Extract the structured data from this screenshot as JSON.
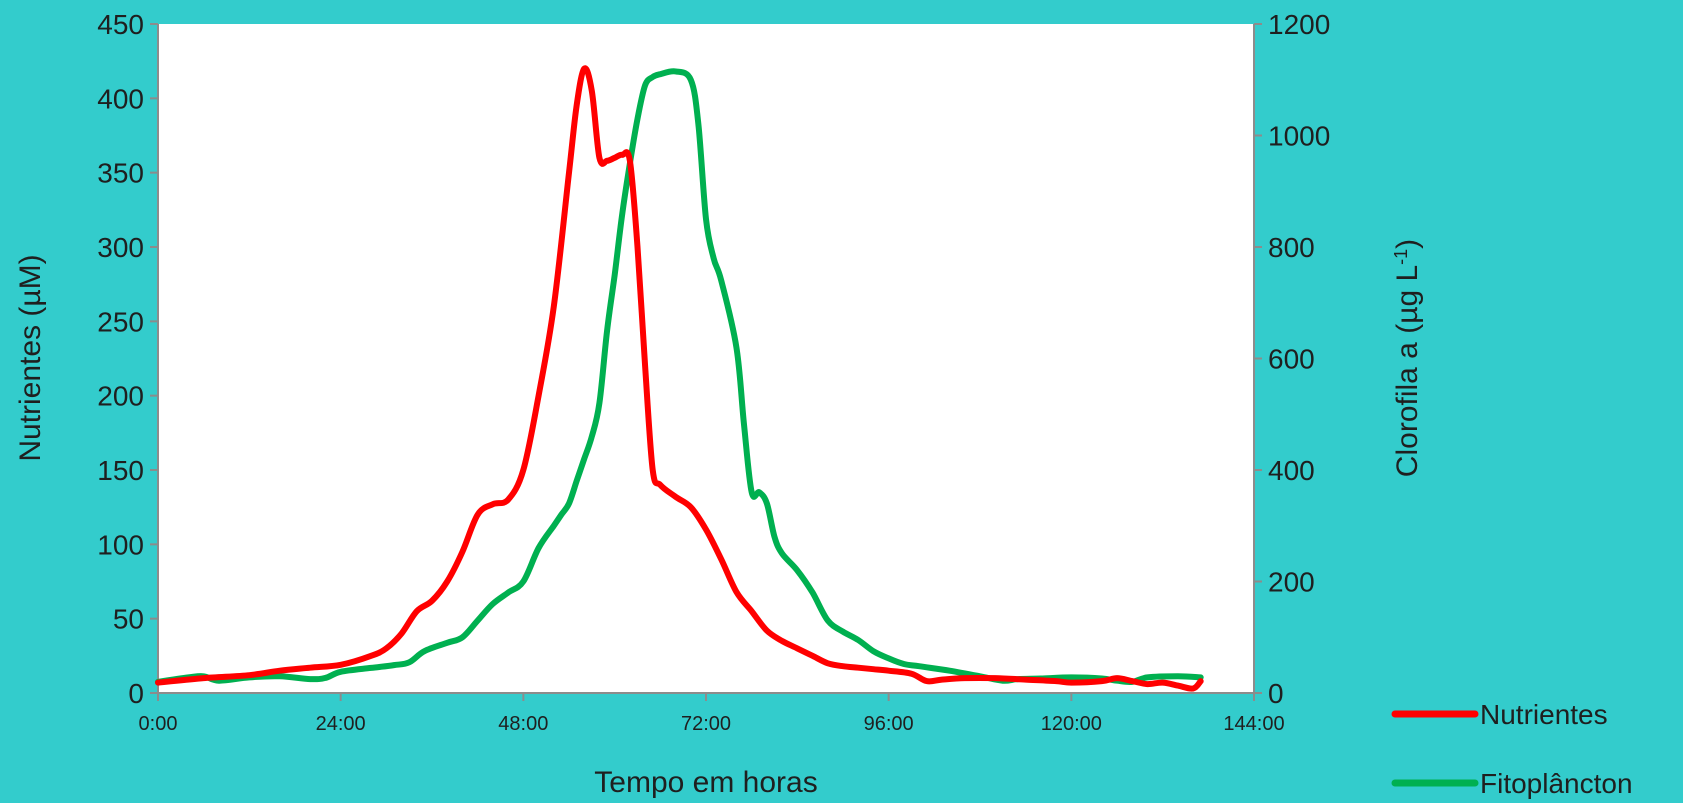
{
  "chart_data": {
    "type": "line",
    "xlabel": "Tempo em horas",
    "ylabel": "Nutrientes (µM)",
    "y2label_main": "Clorofila a (µg L",
    "y2label_sup": "-1",
    "y2label_end": ")",
    "xlim": [
      0,
      144
    ],
    "ylim": [
      0,
      450
    ],
    "y2lim": [
      0,
      1200
    ],
    "x_ticks": [
      "0:00",
      "24:00",
      "48:00",
      "72:00",
      "96:00",
      "120:00",
      "144:00"
    ],
    "y_ticks": [
      "0",
      "50",
      "100",
      "150",
      "200",
      "250",
      "300",
      "350",
      "400",
      "450"
    ],
    "y2_ticks": [
      "0",
      "200",
      "400",
      "600",
      "800",
      "1000",
      "1200"
    ],
    "grid": false,
    "legend_position": "bottom-right",
    "series": [
      {
        "name": "Nutrientes",
        "axis": "left",
        "color": "#FF0000",
        "x": [
          0,
          6,
          12,
          16,
          20,
          24,
          28,
          30,
          32,
          34,
          36,
          38,
          40,
          42,
          44,
          46,
          48,
          50,
          52,
          54,
          55,
          56,
          57,
          58,
          59,
          60,
          61,
          62,
          63,
          64,
          65,
          66,
          68,
          70,
          72,
          74,
          76,
          78,
          80,
          82,
          84,
          86,
          88,
          90,
          92,
          94,
          96,
          99,
          101,
          103,
          106,
          110,
          114,
          118,
          120,
          124,
          126,
          128,
          130,
          132,
          134,
          136,
          137
        ],
        "values": [
          7,
          10,
          12,
          15,
          17,
          19,
          25,
          30,
          40,
          55,
          62,
          75,
          95,
          120,
          127,
          130,
          150,
          200,
          260,
          350,
          395,
          420,
          405,
          360,
          358,
          360,
          362,
          358,
          300,
          220,
          150,
          140,
          132,
          125,
          110,
          90,
          68,
          55,
          42,
          35,
          30,
          25,
          20,
          18,
          17,
          16,
          15,
          13,
          8,
          9,
          10,
          10,
          9,
          8,
          7,
          8,
          10,
          8,
          6,
          7,
          5,
          3,
          8
        ]
      },
      {
        "name": "Fitoplâncton",
        "axis": "right",
        "color": "#00B050",
        "x": [
          0,
          4,
          6,
          8,
          12,
          16,
          20,
          22,
          24,
          28,
          31,
          33,
          35,
          38,
          40,
          42,
          44,
          46,
          48,
          50,
          52,
          53,
          54,
          55,
          56,
          57,
          58,
          59,
          60,
          61,
          62,
          63,
          64,
          65,
          66,
          68,
          70,
          71,
          72,
          73,
          74,
          76,
          77,
          78,
          79,
          80,
          81,
          82,
          84,
          86,
          88,
          90,
          92,
          94,
          96,
          98,
          100,
          104,
          108,
          111,
          113,
          116,
          120,
          124,
          126,
          128,
          130,
          134,
          137
        ],
        "values": [
          20,
          28,
          30,
          22,
          28,
          30,
          25,
          27,
          38,
          45,
          50,
          55,
          75,
          90,
          100,
          130,
          160,
          180,
          200,
          260,
          300,
          320,
          340,
          380,
          420,
          460,
          520,
          650,
          750,
          860,
          950,
          1030,
          1090,
          1105,
          1110,
          1115,
          1100,
          1020,
          850,
          780,
          740,
          620,
          480,
          360,
          360,
          340,
          280,
          250,
          220,
          180,
          130,
          110,
          95,
          75,
          62,
          52,
          48,
          40,
          30,
          22,
          25,
          26,
          28,
          26,
          22,
          20,
          28,
          30,
          28
        ]
      }
    ]
  }
}
